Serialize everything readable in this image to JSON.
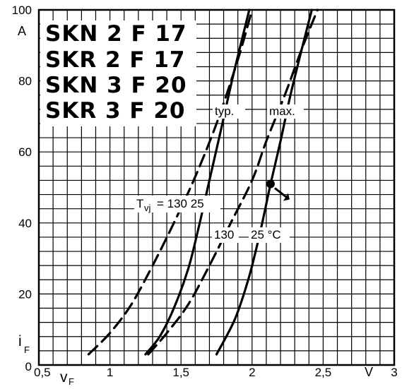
{
  "chart_data": {
    "type": "line",
    "title": "",
    "xlabel": "",
    "ylabel": "",
    "xlim": [
      0.5,
      3
    ],
    "ylim": [
      0,
      100
    ],
    "grid": true,
    "x_axis": {
      "unit": "V",
      "symbol": "v",
      "symbol_sub": "F",
      "ticks": [
        {
          "value": 0.5,
          "label": "0,5"
        },
        {
          "value": 1,
          "label": "1"
        },
        {
          "value": 1.5,
          "label": "1,5"
        },
        {
          "value": 2,
          "label": "2"
        },
        {
          "value": 2.5,
          "label": "2,5"
        },
        {
          "value": 3,
          "label": "3"
        }
      ]
    },
    "y_axis": {
      "unit": "A",
      "symbol": "i",
      "symbol_sub": "F",
      "ticks": [
        {
          "value": 0,
          "label": "0"
        },
        {
          "value": 20,
          "label": "20"
        },
        {
          "value": 40,
          "label": "40"
        },
        {
          "value": 60,
          "label": "60"
        },
        {
          "value": 80,
          "label": "80"
        },
        {
          "value": 100,
          "label": "100"
        }
      ]
    },
    "models": [
      "SKN 2 F 17",
      "SKR 2 F 17",
      "SKN 3 F 20",
      "SKR 3 F 20"
    ],
    "annotations": {
      "typ": "typ.",
      "max": "max.",
      "tvj_prefix": "T",
      "tvj_sub": "vj",
      "tvj_text": "= 130 25",
      "temp_130": "130",
      "temp_25": "25 °C"
    },
    "series": [
      {
        "group": "typ",
        "dash": true,
        "x": [
          0.85,
          1.0,
          1.15,
          1.3,
          1.45,
          1.6,
          1.75,
          1.9,
          2.0
        ],
        "y": [
          3,
          9,
          17,
          28,
          40,
          53,
          68,
          86,
          100
        ]
      },
      {
        "group": "typ",
        "dash": false,
        "x": [
          1.25,
          1.35,
          1.45,
          1.55,
          1.62,
          1.7,
          1.78,
          1.87,
          1.98
        ],
        "y": [
          3,
          8,
          16,
          27,
          38,
          52,
          66,
          82,
          100
        ]
      },
      {
        "group": "max",
        "dash": true,
        "x": [
          1.27,
          1.4,
          1.55,
          1.7,
          1.85,
          2.0,
          2.1,
          2.23,
          2.35,
          2.46
        ],
        "y": [
          3,
          9,
          17,
          28,
          40,
          52,
          63,
          76,
          89,
          100
        ]
      },
      {
        "group": "max",
        "dash": false,
        "x": [
          1.75,
          1.88,
          1.98,
          2.06,
          2.13,
          2.2,
          2.27,
          2.35,
          2.42
        ],
        "y": [
          3,
          13,
          25,
          38,
          51,
          63,
          76,
          89,
          100
        ]
      }
    ],
    "marker": {
      "x": 2.13,
      "y": 51
    }
  }
}
